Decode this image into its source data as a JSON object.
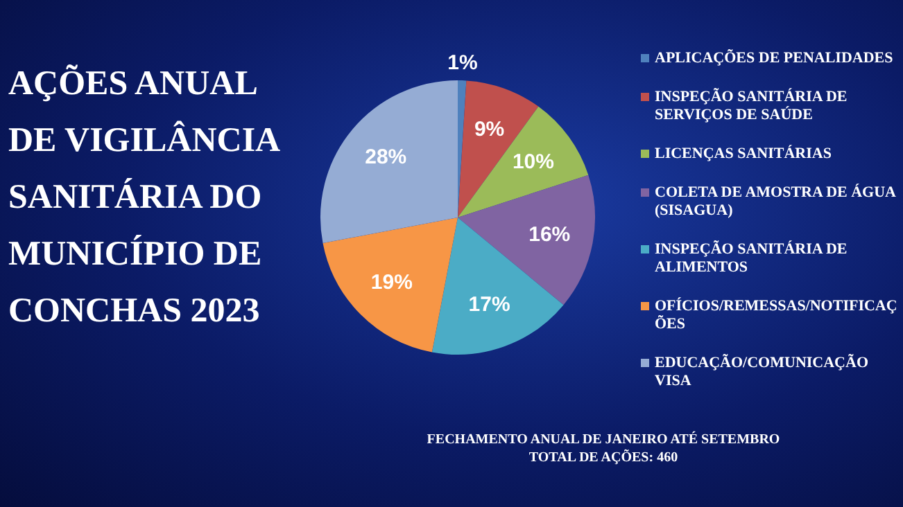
{
  "chart_data": {
    "type": "pie",
    "title": "AÇÕES ANUAL DE VIGILÂNCIA SANITÁRIA DO MUNICÍPIO DE CONCHAS 2023",
    "categories": [
      "APLICAÇÕES DE PENALIDADES",
      "INSPEÇÃO SANITÁRIA DE SERVIÇOS DE SAÚDE",
      "LICENÇAS SANITÁRIAS",
      "COLETA DE AMOSTRA DE ÁGUA (SISAGUA)",
      "INSPEÇÃO SANITÁRIA DE ALIMENTOS",
      "OFÍCIOS/REMESSAS/NOTIFICAÇÕES",
      "EDUCAÇÃO/COMUNICAÇÃO VISA"
    ],
    "values": [
      1,
      9,
      10,
      16,
      17,
      19,
      28
    ],
    "value_labels": [
      "1%",
      "9%",
      "10%",
      "16%",
      "17%",
      "19%",
      "28%"
    ],
    "colors": [
      "#4f81bd",
      "#c0504d",
      "#9bbb59",
      "#8064a2",
      "#4bacc6",
      "#f79646",
      "#95acd4"
    ],
    "legend": "right",
    "annotations": [
      "FECHAMENTO ANUAL DE JANEIRO ATÉ SETEMBRO",
      "TOTAL DE AÇÕES: 460"
    ]
  }
}
